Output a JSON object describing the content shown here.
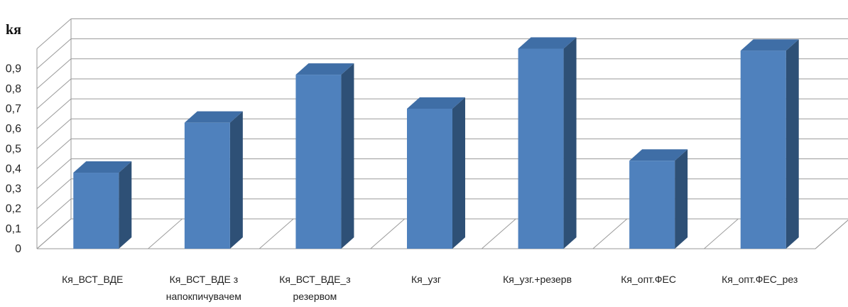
{
  "chart_data": {
    "type": "bar",
    "style": "3d-column",
    "ylabel": "kя",
    "ylim": [
      0,
      1
    ],
    "yticks": [
      "0",
      "0,1",
      "0,2",
      "0,3",
      "0,4",
      "0,5",
      "0,6",
      "0,7",
      "0,8",
      "0,9"
    ],
    "categories": [
      [
        "Кя_ВСТ_ВДЕ"
      ],
      [
        "Кя_ВСТ_ВДЕ з",
        "напокпичувачем"
      ],
      [
        "Кя_ВСТ_ВДЕ_з",
        "резервом"
      ],
      [
        "Кя_узг"
      ],
      [
        "Кя_узг.+резерв"
      ],
      [
        "Кя_опт.ФЕС"
      ],
      [
        "Кя_опт.ФЕС_рез"
      ]
    ],
    "values": [
      0.38,
      0.63,
      0.87,
      0.7,
      1.0,
      0.44,
      0.99
    ],
    "grid": true,
    "colors": {
      "front": "#4f81bd",
      "side": "#2e5076",
      "top": "#3f6ea6",
      "grid": "#9a9a9a"
    }
  }
}
